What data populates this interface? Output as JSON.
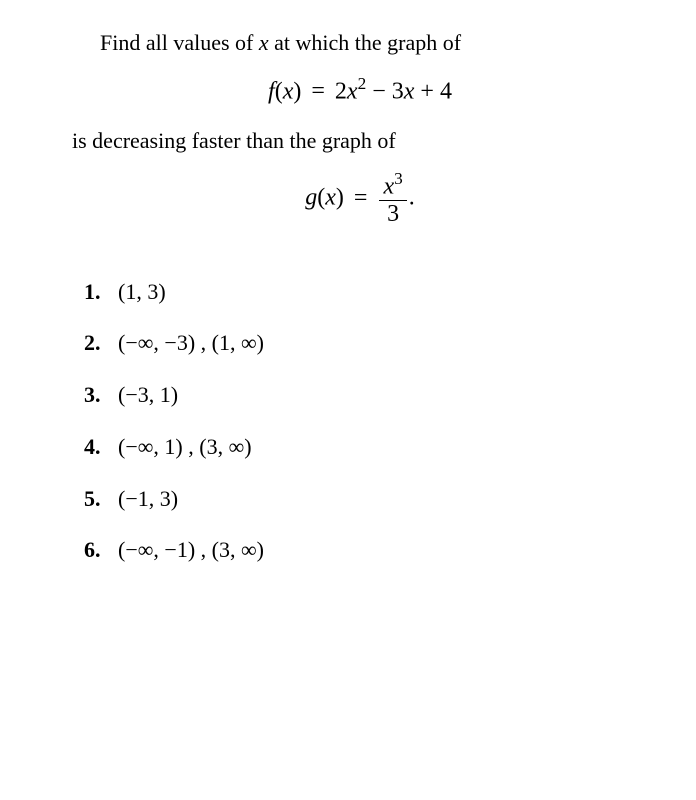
{
  "text_color": "#000000",
  "background_color": "#ffffff",
  "font_family": "Georgia, Times New Roman, serif",
  "prompt": {
    "line1": "Find all values of ",
    "var1": "x",
    "line1b": " at which the graph of",
    "eq1": {
      "lhs_fn": "f",
      "lhs_arg": "x",
      "rhs_a": "2",
      "rhs_var1": "x",
      "rhs_exp1": "2",
      "rhs_op1": " − ",
      "rhs_b": "3",
      "rhs_var2": "x",
      "rhs_op2": " + ",
      "rhs_c": "4"
    },
    "line2": "is decreasing faster than the graph of",
    "eq2": {
      "lhs_fn": "g",
      "lhs_arg": "x",
      "num_var": "x",
      "num_exp": "3",
      "den": "3",
      "tail": "."
    }
  },
  "answers": [
    {
      "n": "1.",
      "body": "(1, 3)"
    },
    {
      "n": "2.",
      "body": "(−∞, −3) ,   (1, ∞)"
    },
    {
      "n": "3.",
      "body": "(−3, 1)"
    },
    {
      "n": "4.",
      "body": "(−∞, 1) ,   (3, ∞)"
    },
    {
      "n": "5.",
      "body": "(−1, 3)"
    },
    {
      "n": "6.",
      "body": "(−∞, −1) ,   (3, ∞)"
    }
  ]
}
